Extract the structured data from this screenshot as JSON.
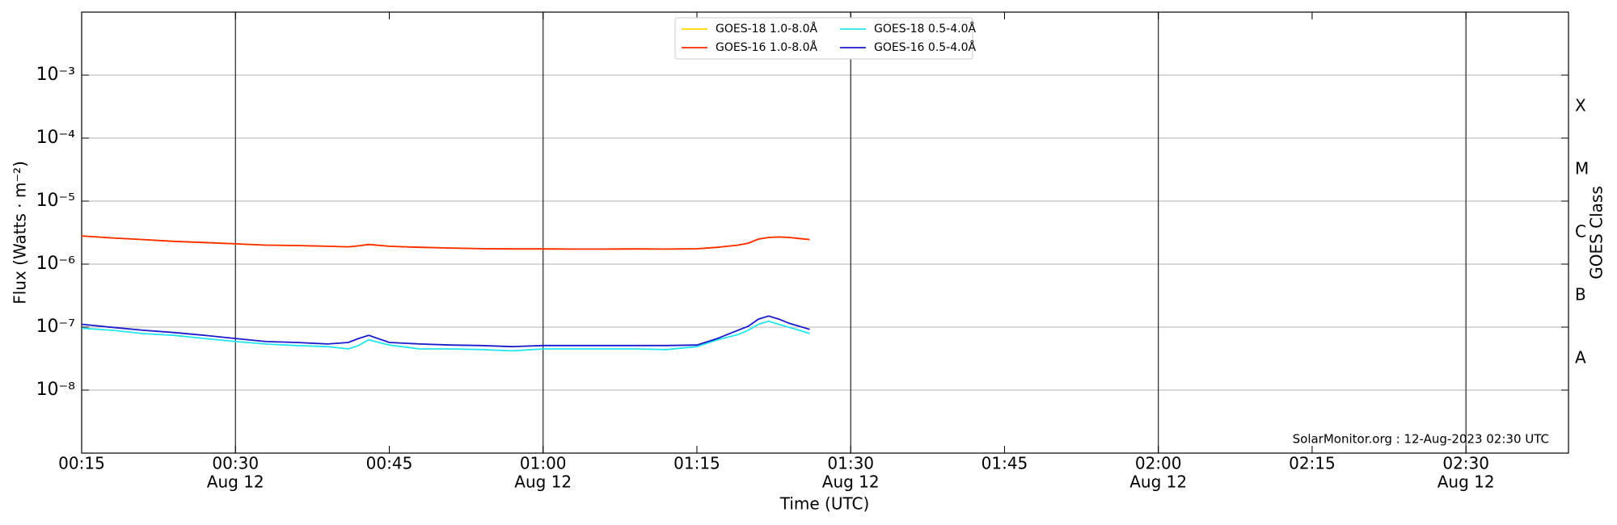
{
  "chart_data": {
    "type": "line",
    "xlabel": "Time (UTC)",
    "ylabel": "Flux (Watts · m⁻²)",
    "y2label": "GOES Class",
    "annotation": "SolarMonitor.org : 12-Aug-2023 02:30 UTC",
    "log_y": true,
    "grid": true,
    "legend": "top-center",
    "xlim": [
      "00:15",
      "02:40"
    ],
    "xticks": [
      "00:15",
      "00:30",
      "00:45",
      "01:00",
      "01:15",
      "01:30",
      "01:45",
      "02:00",
      "02:15",
      "02:30"
    ],
    "xtick_dates": [
      null,
      "Aug 12",
      null,
      "Aug 12",
      null,
      "Aug 12",
      null,
      "Aug 12",
      null,
      "Aug 12"
    ],
    "ylim": [
      1e-09,
      0.01
    ],
    "yticks": [
      {
        "value": 1e-08,
        "label": "10⁻⁸"
      },
      {
        "value": 1e-07,
        "label": "10⁻⁷"
      },
      {
        "value": 1e-06,
        "label": "10⁻⁶"
      },
      {
        "value": 1e-05,
        "label": "10⁻⁵"
      },
      {
        "value": 0.0001,
        "label": "10⁻⁴"
      },
      {
        "value": 0.001,
        "label": "10⁻³"
      }
    ],
    "class_ticks": [
      {
        "value": 3.16e-08,
        "label": "A"
      },
      {
        "value": 3.16e-07,
        "label": "B"
      },
      {
        "value": 3.16e-06,
        "label": "C"
      },
      {
        "value": 3.16e-05,
        "label": "M"
      },
      {
        "value": 0.000316,
        "label": "X"
      }
    ],
    "x": [
      "00:15",
      "00:18",
      "00:21",
      "00:24",
      "00:27",
      "00:30",
      "00:33",
      "00:36",
      "00:39",
      "00:41",
      "00:42",
      "00:43",
      "00:45",
      "00:48",
      "00:51",
      "00:54",
      "00:57",
      "01:00",
      "01:03",
      "01:06",
      "01:09",
      "01:12",
      "01:15",
      "01:17",
      "01:19",
      "01:20",
      "01:21",
      "01:22",
      "01:23",
      "01:24",
      "01:25",
      "01:26"
    ],
    "series": [
      {
        "name": "GOES-18 1.0-8.0Å",
        "color": "#ffd700",
        "values": [
          2.8e-06,
          2.6e-06,
          2.45e-06,
          2.3e-06,
          2.2e-06,
          2.1e-06,
          2e-06,
          1.97e-06,
          1.92e-06,
          1.88e-06,
          1.95e-06,
          2.05e-06,
          1.92e-06,
          1.85e-06,
          1.8e-06,
          1.76e-06,
          1.74e-06,
          1.74e-06,
          1.73e-06,
          1.73e-06,
          1.74e-06,
          1.73e-06,
          1.75e-06,
          1.85e-06,
          2e-06,
          2.15e-06,
          2.5e-06,
          2.65e-06,
          2.7e-06,
          2.65e-06,
          2.55e-06,
          2.45e-06
        ]
      },
      {
        "name": "GOES-16 1.0-8.0Å",
        "color": "#ff2a00",
        "values": [
          2.8e-06,
          2.6e-06,
          2.45e-06,
          2.3e-06,
          2.2e-06,
          2.1e-06,
          2e-06,
          1.97e-06,
          1.92e-06,
          1.88e-06,
          1.95e-06,
          2.05e-06,
          1.92e-06,
          1.85e-06,
          1.8e-06,
          1.76e-06,
          1.74e-06,
          1.74e-06,
          1.73e-06,
          1.73e-06,
          1.74e-06,
          1.73e-06,
          1.75e-06,
          1.85e-06,
          2e-06,
          2.15e-06,
          2.5e-06,
          2.65e-06,
          2.7e-06,
          2.65e-06,
          2.55e-06,
          2.45e-06
        ]
      },
      {
        "name": "GOES-18 0.5-4.0Å",
        "color": "#22e6ee",
        "values": [
          9.6e-08,
          8.9e-08,
          7.9e-08,
          7.4e-08,
          6.6e-08,
          5.9e-08,
          5.4e-08,
          5.1e-08,
          4.9e-08,
          4.5e-08,
          5.1e-08,
          6.3e-08,
          5.2e-08,
          4.5e-08,
          4.5e-08,
          4.4e-08,
          4.2e-08,
          4.5e-08,
          4.5e-08,
          4.5e-08,
          4.5e-08,
          4.4e-08,
          4.9e-08,
          6.3e-08,
          7.6e-08,
          8.9e-08,
          1.11e-07,
          1.24e-07,
          1.11e-07,
          9.9e-08,
          8.9e-08,
          7.9e-08
        ]
      },
      {
        "name": "GOES-16 0.5-4.0Å",
        "color": "#1a1acc",
        "values": [
          1.11e-07,
          9.9e-08,
          8.9e-08,
          8.2e-08,
          7.4e-08,
          6.6e-08,
          5.9e-08,
          5.7e-08,
          5.4e-08,
          5.7e-08,
          6.6e-08,
          7.4e-08,
          5.7e-08,
          5.4e-08,
          5.2e-08,
          5.1e-08,
          4.9e-08,
          5.1e-08,
          5.1e-08,
          5.1e-08,
          5.1e-08,
          5.1e-08,
          5.2e-08,
          6.6e-08,
          8.9e-08,
          1.03e-07,
          1.34e-07,
          1.5e-07,
          1.34e-07,
          1.15e-07,
          1.03e-07,
          9.2e-08
        ]
      }
    ]
  }
}
